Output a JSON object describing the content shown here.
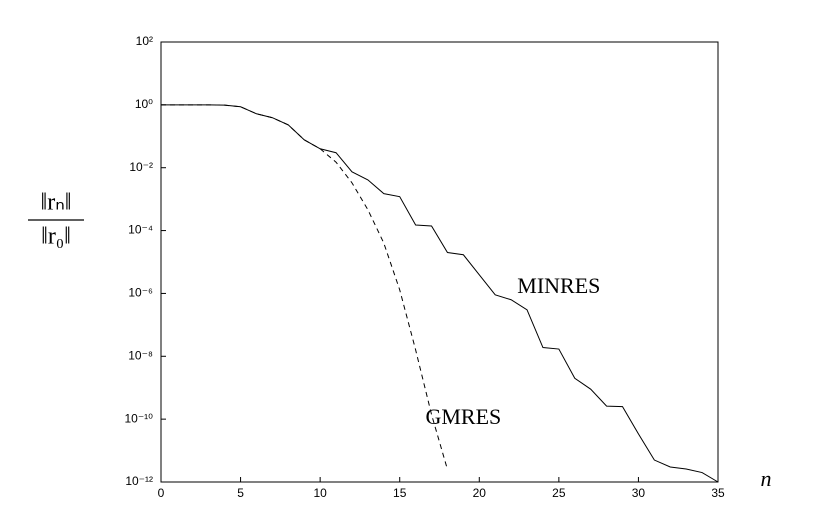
{
  "chart_data": {
    "type": "line",
    "ylabel": {
      "numerator": "‖rₙ‖",
      "denominator": "‖r₀‖"
    },
    "xlabel": "n",
    "x": [
      0,
      1,
      2,
      3,
      4,
      5,
      6,
      7,
      8,
      9,
      10,
      11,
      12,
      13,
      14,
      15,
      16,
      17,
      18,
      19,
      20,
      21,
      22,
      23,
      24,
      25,
      26,
      27,
      28,
      29,
      30,
      31,
      32,
      33,
      34,
      35
    ],
    "series": [
      {
        "name": "MINRES",
        "color": "#000000",
        "dash": false,
        "values": [
          1,
          1,
          1,
          1,
          0.98,
          0.87,
          0.52,
          0.39,
          0.23,
          0.077,
          0.04,
          0.03,
          0.0074,
          0.0041,
          0.0015,
          0.0012,
          0.00015,
          0.00014,
          2e-05,
          1.7e-05,
          3.9e-06,
          9e-07,
          6.3e-07,
          3e-07,
          1.9e-08,
          1.7e-08,
          2e-09,
          9e-10,
          2.6e-10,
          2.5e-10,
          3.4e-11,
          5e-12,
          3e-12,
          2.6e-12,
          2e-12,
          1e-12
        ]
      },
      {
        "name": "GMRES",
        "color": "#000000",
        "dash": true,
        "values": [
          1,
          1,
          1,
          1,
          0.98,
          0.87,
          0.52,
          0.39,
          0.23,
          0.077,
          0.04,
          0.015,
          0.0033,
          0.00046,
          4e-05,
          1.3e-06,
          1.6e-08,
          1.4e-10,
          2.5e-12,
          null,
          null,
          null,
          null,
          null,
          null,
          null,
          null,
          null,
          null,
          null,
          null,
          null,
          null,
          null,
          null,
          null
        ]
      }
    ],
    "annotations": [
      {
        "text": "MINRES",
        "x": 25,
        "y": 1.5e-06
      },
      {
        "text": "GMRES",
        "x": 19,
        "y": 1e-10
      }
    ],
    "xlim": [
      0,
      35
    ],
    "xticks": [
      0,
      5,
      10,
      15,
      20,
      25,
      30,
      35
    ],
    "ylim": [
      1e-12,
      100
    ],
    "ylog": true,
    "grid": false,
    "yticks": [
      {
        "value": 100,
        "label": "10²"
      },
      {
        "value": 1,
        "label": "10⁰"
      },
      {
        "value": 0.01,
        "label": "10⁻²"
      },
      {
        "value": 0.0001,
        "label": "10⁻⁴"
      },
      {
        "value": 1e-06,
        "label": "10⁻⁶"
      },
      {
        "value": 1e-08,
        "label": "10⁻⁸"
      },
      {
        "value": 1e-10,
        "label": "10⁻¹⁰"
      },
      {
        "value": 1e-12,
        "label": "10⁻¹²"
      }
    ]
  }
}
